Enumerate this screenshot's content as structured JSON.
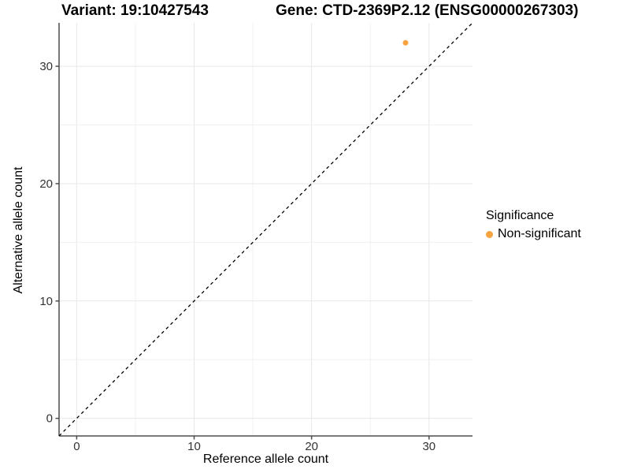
{
  "titles": {
    "variant": "Variant: 19:10427543",
    "gene": "Gene: CTD-2369P2.12 (ENSG00000267303)"
  },
  "axes": {
    "x_label": "Reference allele count",
    "y_label": "Alternative allele count"
  },
  "legend": {
    "title": "Significance",
    "items": [
      {
        "label": "Non-significant",
        "color": "#F7A440"
      }
    ]
  },
  "chart_data": {
    "type": "scatter",
    "title": "Variant: 19:10427543 | Gene: CTD-2369P2.12 (ENSG00000267303)",
    "xlabel": "Reference allele count",
    "ylabel": "Alternative allele count",
    "xlim": [
      -1.5,
      33.7
    ],
    "ylim": [
      -1.5,
      33.7
    ],
    "x_ticks": [
      0,
      10,
      20,
      30
    ],
    "y_ticks": [
      0,
      10,
      20,
      30
    ],
    "grid": true,
    "grid_step_minor": 5,
    "series": [
      {
        "name": "Non-significant",
        "color": "#F7A440",
        "points": [
          {
            "x": 28,
            "y": 32
          }
        ]
      }
    ],
    "reference_line": {
      "kind": "identity",
      "slope": 1,
      "intercept": 0,
      "style": "dashed",
      "color": "#000000"
    },
    "legend_position": "right",
    "colors": {
      "grid_major": "#E7E7E7",
      "grid_minor": "#F1F1F1",
      "axis_line": "#4D4D4D",
      "tick_label": "#333333"
    }
  }
}
